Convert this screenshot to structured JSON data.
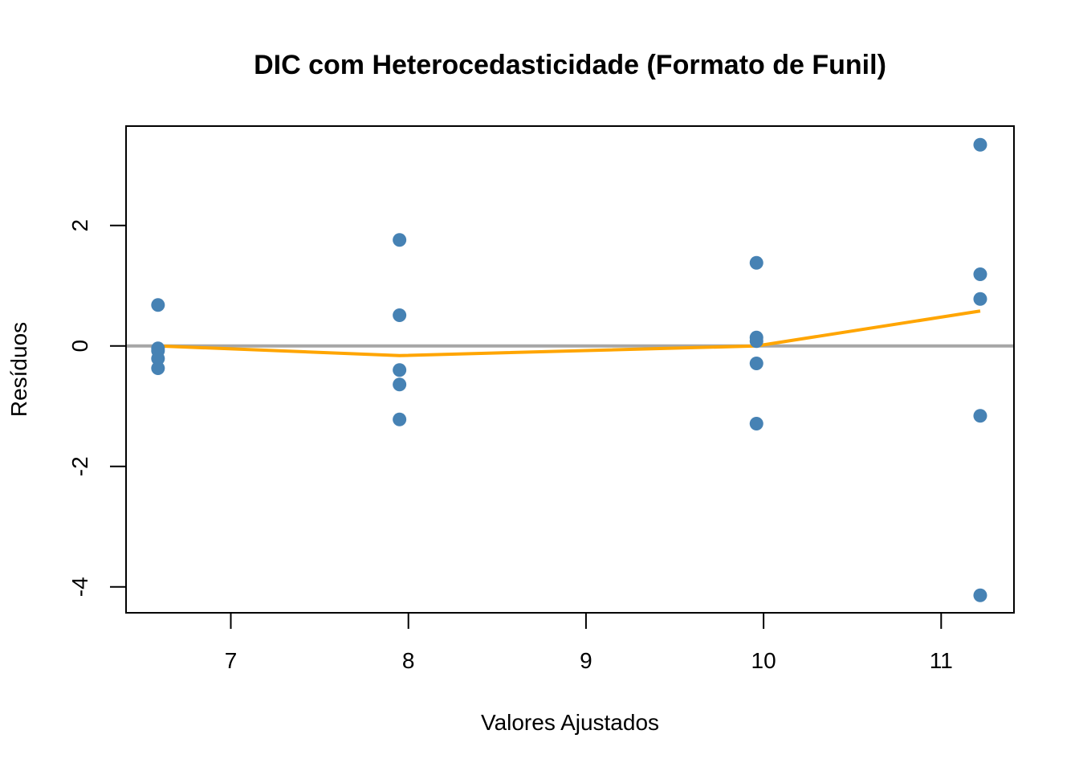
{
  "chart_data": {
    "type": "scatter",
    "title": "DIC com Heterocedasticidade (Formato de Funil)",
    "xlabel": "Valores Ajustados",
    "ylabel": "Resíduos",
    "xlim": [
      6.41,
      11.41
    ],
    "ylim": [
      -4.43,
      3.65
    ],
    "x_ticks": [
      7,
      8,
      9,
      10,
      11
    ],
    "y_ticks": [
      -4,
      -2,
      0,
      2
    ],
    "x_tick_labels": [
      "7",
      "8",
      "9",
      "10",
      "11"
    ],
    "y_tick_labels": [
      "-4",
      "-2",
      "0",
      "2"
    ],
    "points": [
      {
        "x": 6.59,
        "y": 0.68
      },
      {
        "x": 6.59,
        "y": -0.04
      },
      {
        "x": 6.59,
        "y": -0.08
      },
      {
        "x": 6.59,
        "y": -0.21
      },
      {
        "x": 6.59,
        "y": -0.37
      },
      {
        "x": 7.95,
        "y": 1.76
      },
      {
        "x": 7.95,
        "y": 0.51
      },
      {
        "x": 7.95,
        "y": -0.4
      },
      {
        "x": 7.95,
        "y": -0.64
      },
      {
        "x": 7.95,
        "y": -1.22
      },
      {
        "x": 9.96,
        "y": 1.38
      },
      {
        "x": 9.96,
        "y": 0.14
      },
      {
        "x": 9.96,
        "y": 0.08
      },
      {
        "x": 9.96,
        "y": -0.29
      },
      {
        "x": 9.96,
        "y": -1.29
      },
      {
        "x": 11.22,
        "y": 3.34
      },
      {
        "x": 11.22,
        "y": 1.19
      },
      {
        "x": 11.22,
        "y": 0.78
      },
      {
        "x": 11.22,
        "y": -1.16
      },
      {
        "x": 11.22,
        "y": -4.14
      }
    ],
    "smooth_line": {
      "x": [
        6.59,
        7.95,
        9.96,
        11.22
      ],
      "y": [
        0.0,
        -0.16,
        0.0,
        0.58
      ]
    },
    "reference_line_y": 0,
    "colors": {
      "points": "#4682B4",
      "smooth_line": "#FFA500",
      "reference_line": "#A6A6A6"
    },
    "grid": false,
    "legend": "none"
  }
}
